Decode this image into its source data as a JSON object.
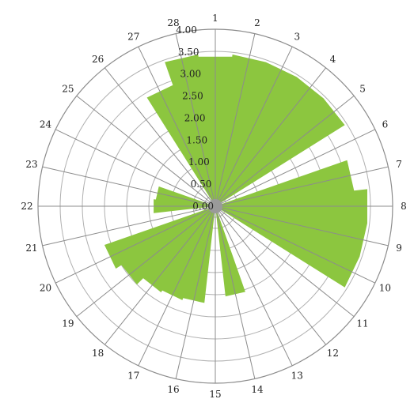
{
  "chart_data": {
    "type": "radar-area",
    "categories": [
      "1",
      "2",
      "3",
      "4",
      "5",
      "6",
      "7",
      "8",
      "9",
      "10",
      "11",
      "12",
      "13",
      "14",
      "15",
      "16",
      "17",
      "18",
      "19",
      "20",
      "21",
      "22",
      "23",
      "24",
      "25",
      "26",
      "27",
      "28"
    ],
    "values": [
      3.4,
      3.45,
      3.45,
      3.45,
      3.45,
      0.0,
      3.15,
      3.45,
      3.45,
      3.45,
      0.0,
      0.0,
      0.0,
      2.05,
      0.0,
      2.2,
      2.25,
      2.3,
      2.5,
      2.65,
      0.0,
      1.4,
      1.35,
      0.0,
      0.0,
      0.0,
      2.9,
      3.45
    ],
    "rlim": [
      0,
      4
    ],
    "tick_values": [
      0.0,
      0.5,
      1.0,
      1.5,
      2.0,
      2.5,
      3.0,
      3.5,
      4.0
    ],
    "tick_labels": [
      "0.00",
      "0.50",
      "1.00",
      "1.50",
      "2.00",
      "2.50",
      "3.00",
      "3.50",
      "4.00"
    ],
    "fill_color": "#8cc63f",
    "spoke_color": "#8c8c8c",
    "grid_color": "#b0b0b0",
    "center_color": "#9a9a9a",
    "grid": true
  }
}
